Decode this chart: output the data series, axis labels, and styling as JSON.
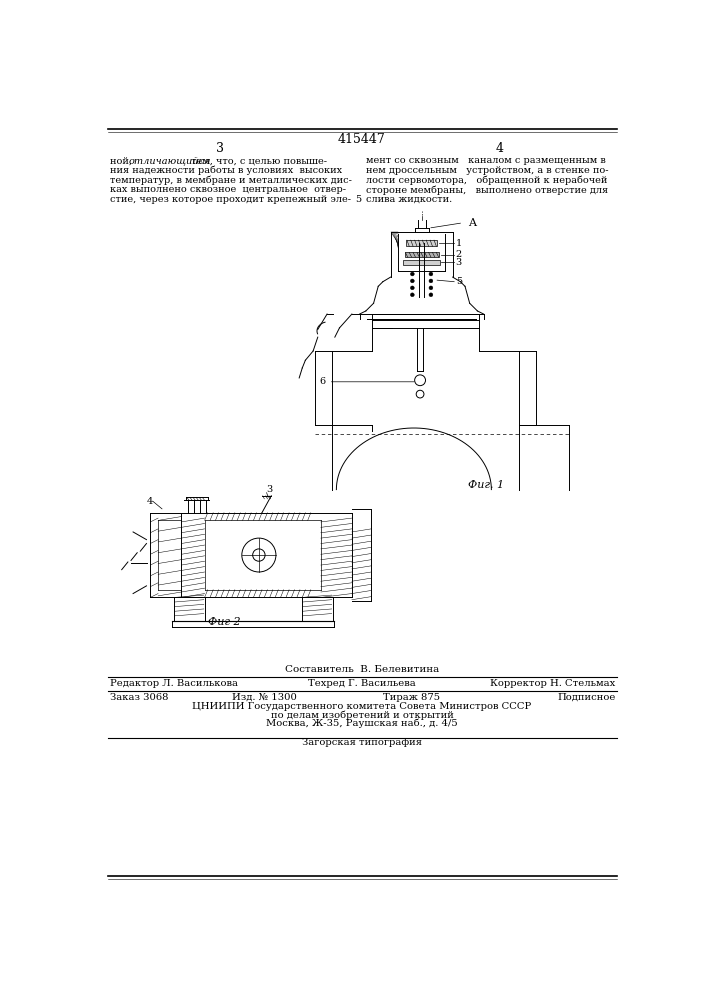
{
  "patent_number": "415447",
  "page_left": "3",
  "page_right": "4",
  "text_left": "ной, отличающийся тем, что, с целью повыше-\nния надежности работы в условиях  высоких\nтемператур, в мембране и металлических дис-\nках выполнено сквозное  центральное  отвер-\nстие, через которое проходит крепежный эле-",
  "text_right_col1": "мент со сквозным   каналом с размещенным в",
  "text_right_col2": "нем дроссельным   устройством, а в стенке по-",
  "text_right_col3": "лости сервомотора,   обращенной к нерабочей",
  "text_right_col4": "стороне мембраны,   выполнено отверстие для",
  "text_right_col5": "слива жидкости.",
  "fig1_caption": "Фиг. 1",
  "fig2_caption": "Фиг 2",
  "editor_label": "Редактор Л. Василькова",
  "tech_label": "Техред Г. Васильева",
  "corrector_label": "Корректор Н. Стельмах",
  "order_label": "Заказ 3068",
  "izd_label": "Изд. № 1300",
  "tirazh_label": "Тираж 875",
  "podpisnoe_label": "Подписное",
  "cniip_line1": "ЦНИИПИ Государственного комитета Совета Министров СССР",
  "cniip_line2": "по делам изобретений и открытий",
  "cniip_line3": "Москва, Ж-35, Раушская наб., д. 4/5",
  "zagors": "Загорская типография",
  "bg_color": "#ffffff",
  "text_color": "#000000",
  "line_color": "#000000",
  "sestavitel_line": "Составитель  В. Белевитина"
}
